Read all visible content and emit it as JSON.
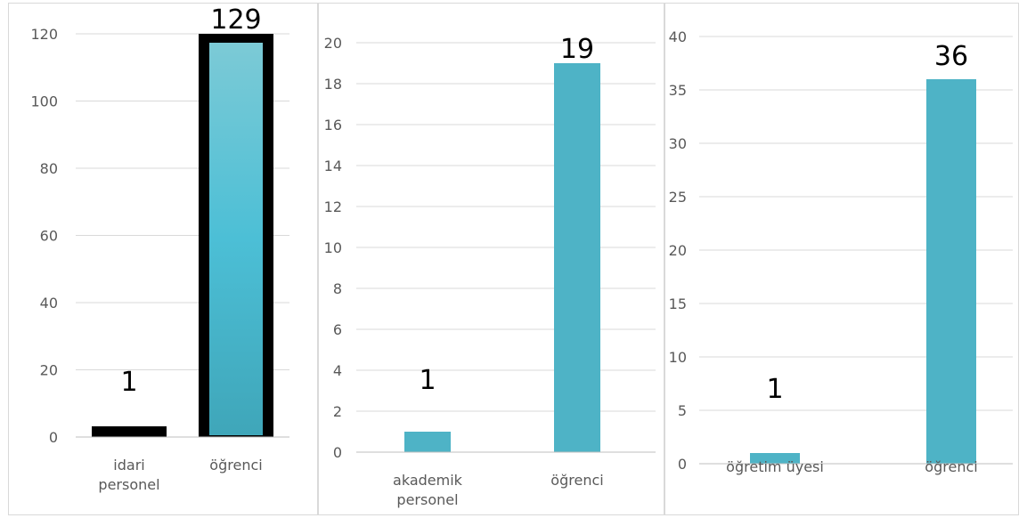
{
  "chart_data": [
    {
      "type": "bar",
      "categories": [
        "idari personel",
        "öğrenci"
      ],
      "values": [
        1,
        129
      ],
      "data_labels": [
        "1",
        "129"
      ],
      "ylim": [
        0,
        120
      ],
      "yticks": [
        0,
        20,
        40,
        60,
        80,
        100,
        120
      ],
      "grid": true,
      "colors": {
        "bar": "#4eb3c6",
        "bar_gradient_top": "#7ccad6",
        "outline": "#000000"
      }
    },
    {
      "type": "bar",
      "categories": [
        "akademik personel",
        "öğrenci"
      ],
      "values": [
        1,
        19
      ],
      "data_labels": [
        "1",
        "19"
      ],
      "ylim": [
        0,
        20
      ],
      "yticks": [
        0,
        2,
        4,
        6,
        8,
        10,
        12,
        14,
        16,
        18,
        20
      ],
      "grid": true,
      "colors": {
        "bar": "#4eb3c6"
      }
    },
    {
      "type": "bar",
      "categories": [
        "öğretim üyesi",
        "öğrenci"
      ],
      "values": [
        1,
        36
      ],
      "data_labels": [
        "1",
        "36"
      ],
      "ylim": [
        0,
        40
      ],
      "yticks": [
        0,
        5,
        10,
        15,
        20,
        25,
        30,
        35,
        40
      ],
      "grid": true,
      "colors": {
        "bar": "#4eb3c6"
      }
    }
  ]
}
